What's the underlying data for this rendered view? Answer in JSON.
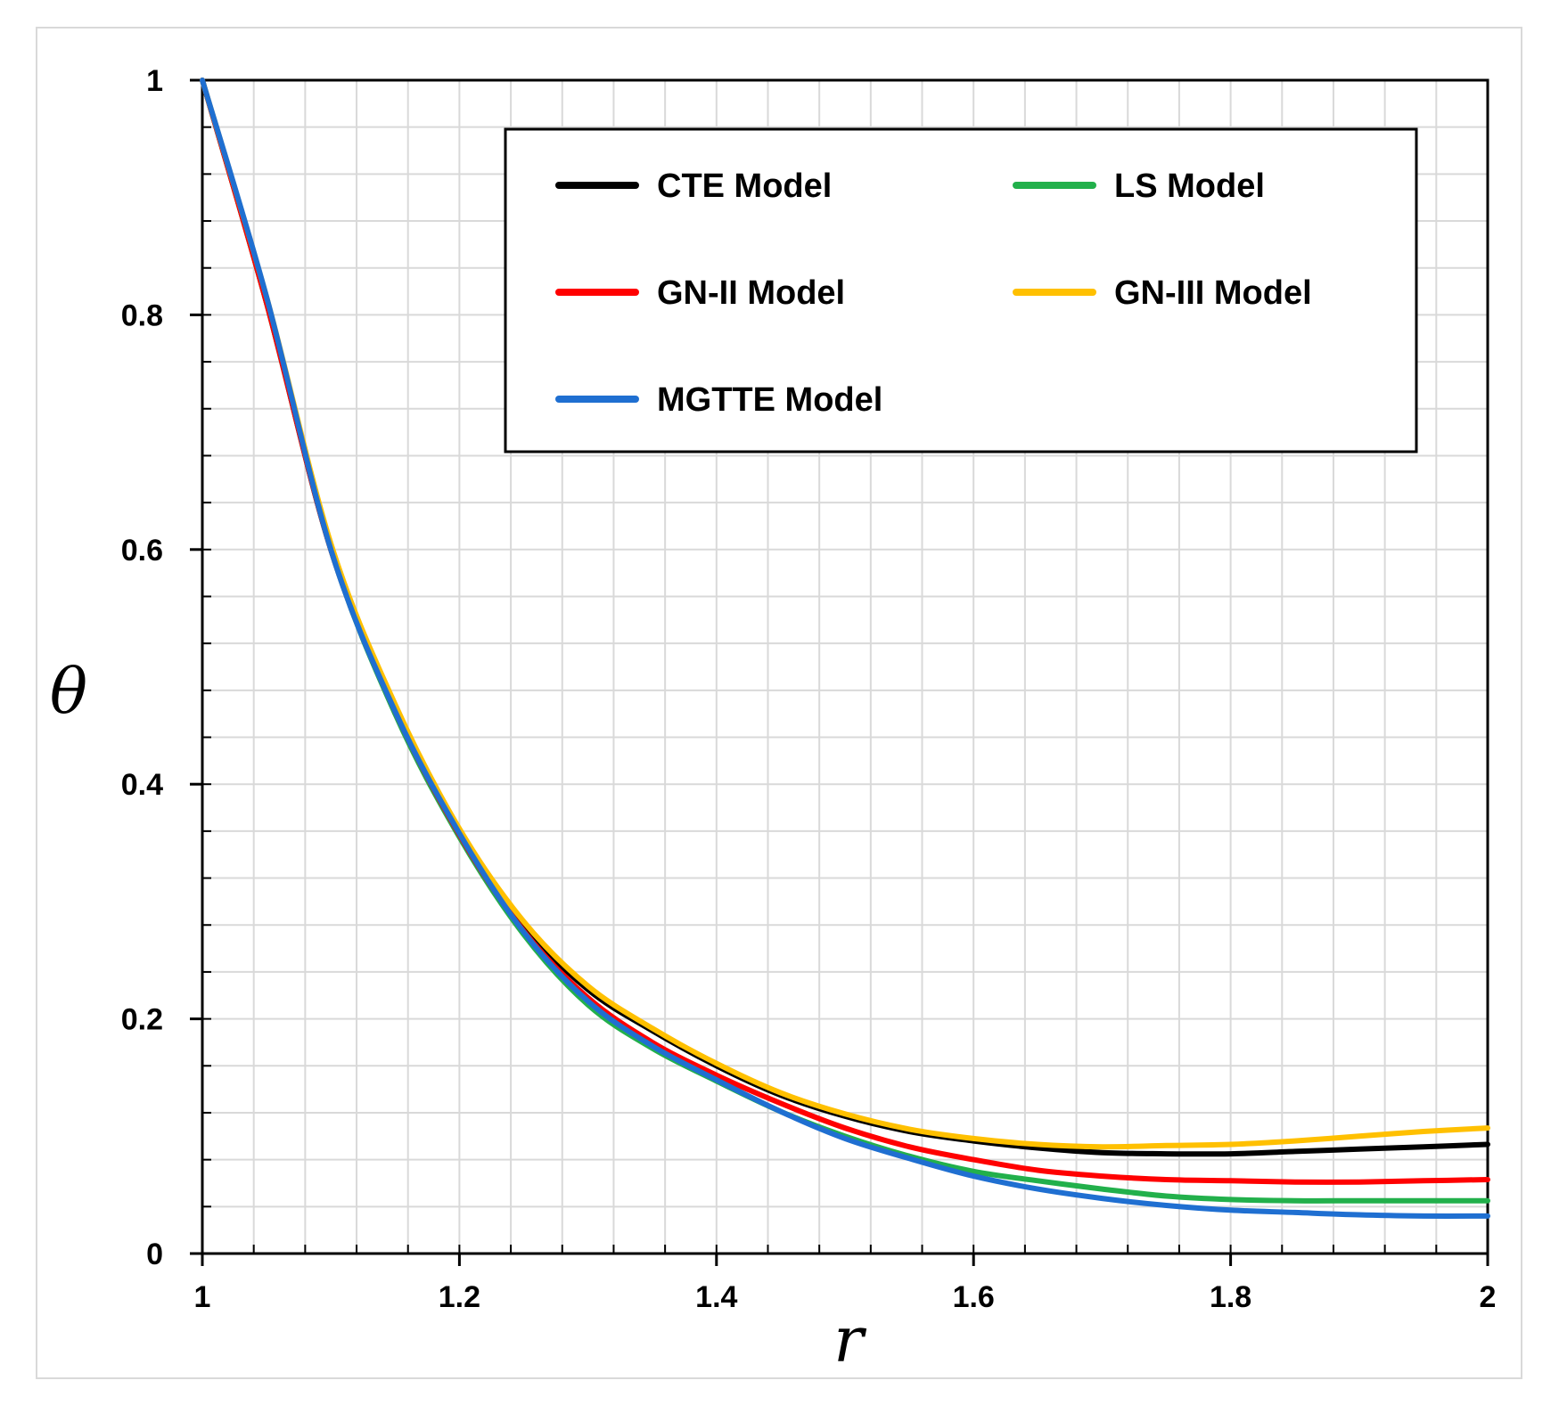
{
  "chart_data": {
    "type": "line",
    "title": "",
    "xlabel": "r",
    "ylabel": "θ",
    "xlim": [
      1,
      2
    ],
    "ylim": [
      0,
      1
    ],
    "x_ticks": [
      1,
      1.2,
      1.4,
      1.6,
      1.8,
      2
    ],
    "x_tick_labels": [
      "1",
      "1.2",
      "1.4",
      "1.6",
      "1.8",
      "2"
    ],
    "y_ticks": [
      0,
      0.2,
      0.4,
      0.6,
      0.8,
      1
    ],
    "y_tick_labels": [
      "0",
      "0.2",
      "0.4",
      "0.6",
      "0.8",
      "1"
    ],
    "grid": true,
    "legend_position": "top-right",
    "x": [
      1.0,
      1.05,
      1.1,
      1.15,
      1.2,
      1.25,
      1.3,
      1.35,
      1.4,
      1.45,
      1.5,
      1.55,
      1.6,
      1.65,
      1.7,
      1.75,
      1.8,
      1.85,
      1.9,
      1.95,
      2.0
    ],
    "series": [
      {
        "name": "CTE Model",
        "color": "#000000",
        "values": [
          1.0,
          0.81,
          0.6,
          0.465,
          0.36,
          0.28,
          0.225,
          0.19,
          0.16,
          0.135,
          0.117,
          0.104,
          0.096,
          0.09,
          0.086,
          0.085,
          0.085,
          0.087,
          0.089,
          0.091,
          0.093
        ]
      },
      {
        "name": "LS Model",
        "color": "#22b04b",
        "values": [
          1.0,
          0.81,
          0.6,
          0.46,
          0.355,
          0.272,
          0.212,
          0.175,
          0.147,
          0.121,
          0.1,
          0.083,
          0.07,
          0.062,
          0.055,
          0.049,
          0.046,
          0.045,
          0.045,
          0.045,
          0.045
        ]
      },
      {
        "name": "GN-II Model",
        "color": "#ff0000",
        "values": [
          1.0,
          0.81,
          0.6,
          0.462,
          0.357,
          0.275,
          0.218,
          0.18,
          0.152,
          0.128,
          0.107,
          0.091,
          0.08,
          0.071,
          0.066,
          0.063,
          0.062,
          0.061,
          0.061,
          0.062,
          0.063
        ]
      },
      {
        "name": "GN-III Model",
        "color": "#ffc000",
        "values": [
          1.0,
          0.815,
          0.605,
          0.468,
          0.362,
          0.283,
          0.228,
          0.192,
          0.162,
          0.137,
          0.119,
          0.106,
          0.098,
          0.093,
          0.091,
          0.092,
          0.093,
          0.096,
          0.1,
          0.104,
          0.107
        ]
      },
      {
        "name": "MGTTE Model",
        "color": "#1f6fd1",
        "values": [
          1.0,
          0.815,
          0.6,
          0.462,
          0.358,
          0.274,
          0.215,
          0.177,
          0.148,
          0.121,
          0.098,
          0.081,
          0.066,
          0.055,
          0.047,
          0.041,
          0.037,
          0.035,
          0.033,
          0.032,
          0.032
        ]
      }
    ]
  }
}
